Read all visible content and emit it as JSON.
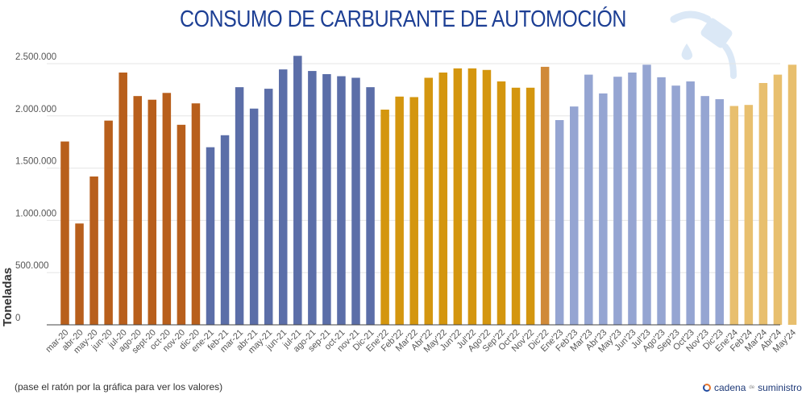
{
  "title": "CONSUMO DE CARBURANTE DE AUTOMOCIÓN",
  "footnote": "(pase el ratón por la gráfica para ver los valores)",
  "brand": {
    "name_a": "cadena",
    "name_small": "de",
    "name_b": "suministro",
    "icon": "cadena-logo-icon"
  },
  "decoration_icon": "fuel-pump-icon",
  "colors": {
    "y2020": "#b85f1c",
    "y2021": "#5b6ea8",
    "y2022": "#d4960f",
    "y2022_last": "#d08a3a",
    "y2023": "#95a5d2",
    "y2024": "#e8bf6e"
  },
  "chart_data": {
    "type": "bar",
    "title": "CONSUMO DE CARBURANTE DE AUTOMOCIÓN",
    "xlabel": "",
    "ylabel": "Toneladas",
    "ylim": [
      0,
      2500000
    ],
    "yticks": [
      0,
      500000,
      1000000,
      1500000,
      2000000,
      2500000
    ],
    "ytick_labels": [
      "0",
      "500.000",
      "1.000.000",
      "1.500.000",
      "2.000.000",
      "2.500.000"
    ],
    "grid": true,
    "legend": "none",
    "categories": [
      "mar-20",
      "abr-20",
      "may-20",
      "jun-20",
      "jul-20",
      "ago-20",
      "sept-20",
      "oct-20",
      "nov-20",
      "dic-20",
      "ene-21",
      "feb-21",
      "mar-21",
      "abr-21",
      "may-21",
      "jun-21",
      "jul-21",
      "ago-21",
      "sep-21",
      "oct-21",
      "nov-21",
      "Dic-21",
      "Ene'22",
      "Feb'22",
      "Mar'22",
      "Abr'22",
      "May'22",
      "Jun'22",
      "Jul'22",
      "Ago'22",
      "Sep'22",
      "Oct'22",
      "Nov'22",
      "Dic'22",
      "Ene'23",
      "Feb'23",
      "Mar'23",
      "Abr'23",
      "May'23",
      "Jun'23",
      "Jul'23",
      "Ago'23",
      "Sep'23",
      "Oct'23",
      "Nov'23",
      "Dic'23",
      "Ene'24",
      "Feb'24",
      "Mar'24",
      "Abr'24",
      "May'24"
    ],
    "values": [
      1755000,
      970000,
      1420000,
      1955000,
      2415000,
      2190000,
      2155000,
      2220000,
      1915000,
      2120000,
      1700000,
      1815000,
      2275000,
      2070000,
      2260000,
      2445000,
      2575000,
      2430000,
      2400000,
      2380000,
      2365000,
      2275000,
      2060000,
      2185000,
      2180000,
      2365000,
      2415000,
      2455000,
      2455000,
      2440000,
      2330000,
      2270000,
      2270000,
      2470000,
      1960000,
      2090000,
      2395000,
      2215000,
      2375000,
      2415000,
      2490000,
      2370000,
      2290000,
      2330000,
      2190000,
      2160000,
      2095000,
      2105000,
      2315000,
      2395000,
      2490000
    ],
    "color_groups": [
      "y2020",
      "y2020",
      "y2020",
      "y2020",
      "y2020",
      "y2020",
      "y2020",
      "y2020",
      "y2020",
      "y2020",
      "y2021",
      "y2021",
      "y2021",
      "y2021",
      "y2021",
      "y2021",
      "y2021",
      "y2021",
      "y2021",
      "y2021",
      "y2021",
      "y2021",
      "y2022",
      "y2022",
      "y2022",
      "y2022",
      "y2022",
      "y2022",
      "y2022",
      "y2022",
      "y2022",
      "y2022",
      "y2022",
      "y2022_last",
      "y2023",
      "y2023",
      "y2023",
      "y2023",
      "y2023",
      "y2023",
      "y2023",
      "y2023",
      "y2023",
      "y2023",
      "y2023",
      "y2023",
      "y2024",
      "y2024",
      "y2024",
      "y2024",
      "y2024"
    ]
  }
}
